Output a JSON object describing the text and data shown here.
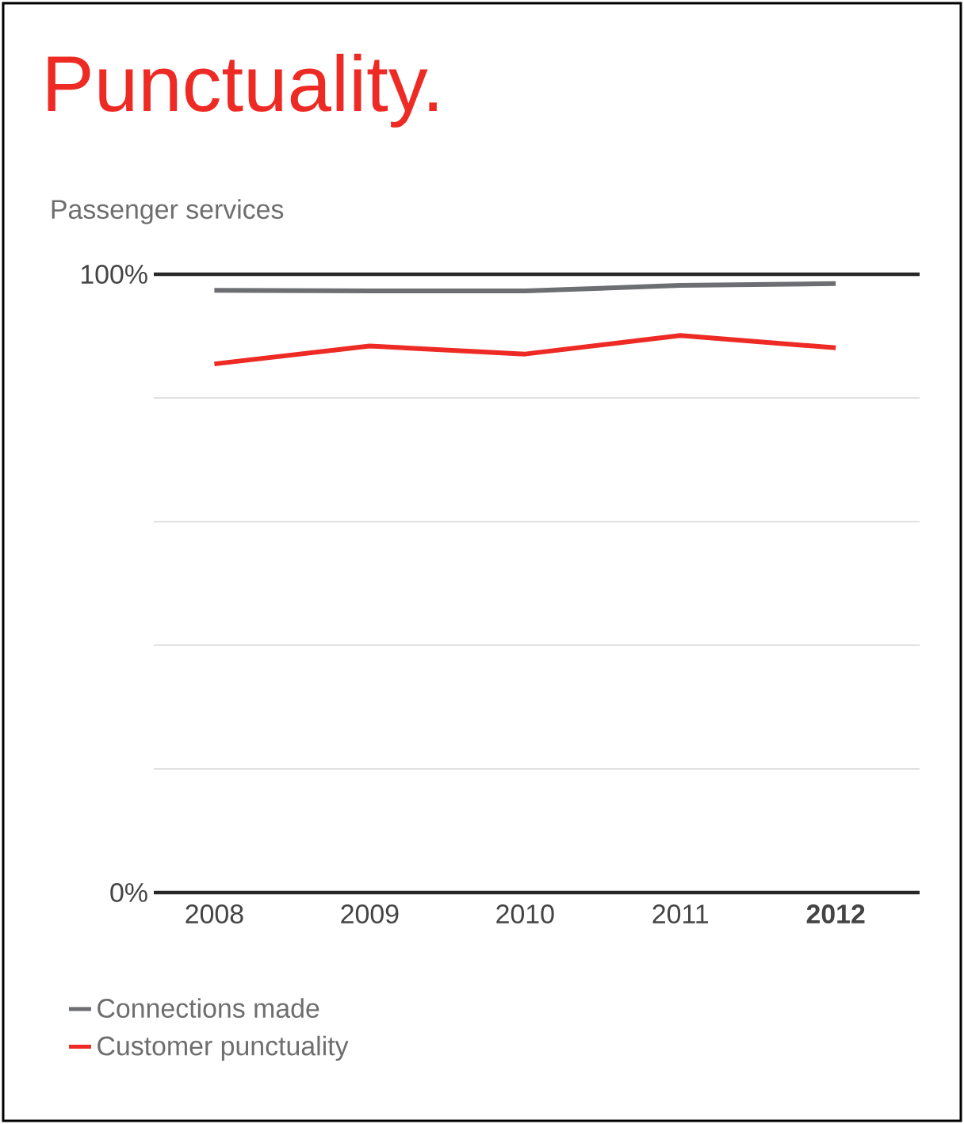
{
  "chart_data": {
    "type": "line",
    "title": "Punctuality.",
    "ylabel": "Passenger services",
    "categories": [
      "2008",
      "2009",
      "2010",
      "2011",
      "**2012**"
    ],
    "series": [
      {
        "name": "Connections made",
        "color": "#6d6e71",
        "values": [
          97.4,
          97.3,
          97.3,
          98.2,
          98.5
        ]
      },
      {
        "name": "Customer punctuality",
        "color": "#ee2a24",
        "values": [
          85.5,
          88.4,
          87.1,
          90.1,
          88.1
        ]
      }
    ],
    "ylim": [
      0,
      100
    ],
    "yticks": [
      {
        "value": 0,
        "label": "0%"
      },
      {
        "value": 20,
        "label": null
      },
      {
        "value": 40,
        "label": null
      },
      {
        "value": 60,
        "label": null
      },
      {
        "value": 80,
        "label": null
      },
      {
        "value": 100,
        "label": "100%"
      }
    ],
    "grid": "y",
    "legend": "bottom left",
    "marker": "none",
    "line_style": "solid"
  }
}
